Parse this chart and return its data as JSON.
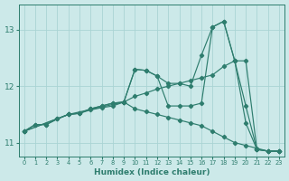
{
  "xlabel": "Humidex (Indice chaleur)",
  "bg_color": "#cce9e9",
  "grid_color": "#aad4d4",
  "line_color": "#2e7d6e",
  "xlim": [
    -0.5,
    23.5
  ],
  "ylim": [
    10.75,
    13.45
  ],
  "yticks": [
    11,
    12,
    13
  ],
  "xticks": [
    0,
    1,
    2,
    3,
    4,
    5,
    6,
    7,
    8,
    9,
    10,
    11,
    12,
    13,
    14,
    15,
    16,
    17,
    18,
    19,
    20,
    21,
    22,
    23
  ],
  "lines": [
    {
      "x": [
        0,
        1,
        2,
        3,
        4,
        5,
        6,
        7,
        8,
        9,
        10,
        11,
        12,
        13,
        14,
        15,
        16,
        17,
        18,
        19,
        20,
        21,
        22,
        23
      ],
      "y": [
        11.2,
        11.32,
        11.32,
        11.42,
        11.5,
        11.52,
        11.6,
        11.65,
        11.7,
        11.72,
        12.3,
        12.28,
        12.18,
        12.05,
        12.05,
        12.0,
        12.55,
        13.05,
        13.15,
        12.45,
        11.65,
        10.88,
        10.85,
        10.85
      ]
    },
    {
      "x": [
        0,
        1,
        2,
        3,
        4,
        5,
        6,
        7,
        8,
        9,
        10,
        11,
        12,
        13,
        14,
        15,
        16,
        17,
        18,
        19,
        20,
        21,
        22,
        23
      ],
      "y": [
        11.2,
        11.32,
        11.32,
        11.42,
        11.5,
        11.52,
        11.6,
        11.65,
        11.7,
        11.72,
        11.82,
        11.88,
        11.95,
        12.0,
        12.05,
        12.1,
        12.15,
        12.2,
        12.35,
        12.45,
        11.35,
        10.88,
        10.85,
        10.85
      ]
    },
    {
      "x": [
        0,
        4,
        9,
        10,
        11,
        12,
        13,
        14,
        15,
        16,
        17,
        18,
        19,
        20,
        21,
        22,
        23
      ],
      "y": [
        11.2,
        11.5,
        11.72,
        12.3,
        12.28,
        12.18,
        11.65,
        11.65,
        11.65,
        11.7,
        13.05,
        13.15,
        12.45,
        12.45,
        10.88,
        10.85,
        10.85
      ]
    },
    {
      "x": [
        0,
        4,
        5,
        6,
        7,
        8,
        9,
        10,
        11,
        12,
        13,
        14,
        15,
        16,
        17,
        18,
        19,
        20,
        21,
        22,
        23
      ],
      "y": [
        11.2,
        11.5,
        11.52,
        11.58,
        11.62,
        11.65,
        11.72,
        11.6,
        11.55,
        11.5,
        11.45,
        11.4,
        11.35,
        11.3,
        11.2,
        11.1,
        11.0,
        10.95,
        10.9,
        10.85,
        10.85
      ]
    }
  ]
}
